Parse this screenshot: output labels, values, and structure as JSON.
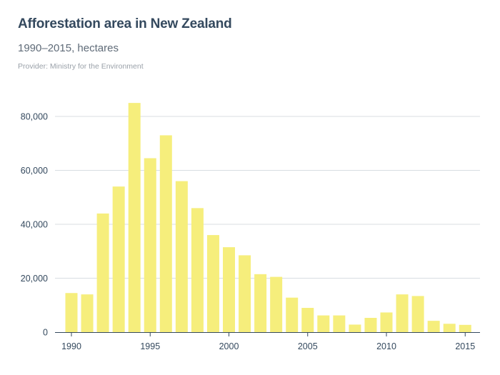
{
  "header": {
    "title": "Afforestation area in New Zealand",
    "subtitle": "1990–2015, hectares",
    "provider": "Provider: Ministry for the Environment"
  },
  "chart_data": {
    "type": "bar",
    "title": "Afforestation area in New Zealand",
    "subtitle": "1990–2015, hectares",
    "xlabel": "",
    "ylabel": "",
    "categories": [
      1990,
      1991,
      1992,
      1993,
      1994,
      1995,
      1996,
      1997,
      1998,
      1999,
      2000,
      2001,
      2002,
      2003,
      2004,
      2005,
      2006,
      2007,
      2008,
      2009,
      2010,
      2011,
      2012,
      2013,
      2014,
      2015
    ],
    "values": [
      14500,
      14000,
      44000,
      54000,
      85000,
      64500,
      73000,
      56000,
      46000,
      36000,
      31500,
      28500,
      21500,
      20500,
      12800,
      9000,
      6200,
      6200,
      2800,
      5300,
      7300,
      14000,
      13400,
      4200,
      3100,
      2700
    ],
    "ylim": [
      0,
      85000
    ],
    "y_ticks": [
      0,
      20000,
      40000,
      60000,
      80000
    ],
    "y_tick_labels": [
      "0",
      "20,000",
      "40,000",
      "60,000",
      "80,000"
    ],
    "x_ticks": [
      1990,
      1995,
      2000,
      2005,
      2010,
      2015
    ],
    "x_tick_labels": [
      "1990",
      "1995",
      "2000",
      "2005",
      "2010",
      "2015"
    ],
    "grid": true,
    "colors": {
      "bar": "#f6ee7c",
      "grid": "#d8dde2",
      "axis": "#34495e"
    }
  }
}
